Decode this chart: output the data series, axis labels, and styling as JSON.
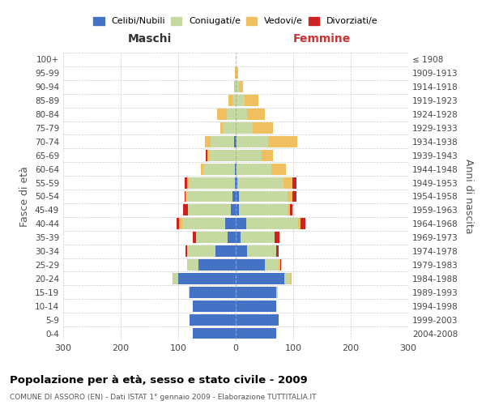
{
  "age_groups": [
    "0-4",
    "5-9",
    "10-14",
    "15-19",
    "20-24",
    "25-29",
    "30-34",
    "35-39",
    "40-44",
    "45-49",
    "50-54",
    "55-59",
    "60-64",
    "65-69",
    "70-74",
    "75-79",
    "80-84",
    "85-89",
    "90-94",
    "95-99",
    "100+"
  ],
  "birth_years": [
    "2004-2008",
    "1999-2003",
    "1994-1998",
    "1989-1993",
    "1984-1988",
    "1979-1983",
    "1974-1978",
    "1969-1973",
    "1964-1968",
    "1959-1963",
    "1954-1958",
    "1949-1953",
    "1944-1948",
    "1939-1943",
    "1934-1938",
    "1929-1933",
    "1924-1928",
    "1919-1923",
    "1914-1918",
    "1909-1913",
    "≤ 1908"
  ],
  "male_celibe": [
    75,
    80,
    75,
    80,
    100,
    65,
    35,
    14,
    18,
    8,
    5,
    2,
    2,
    0,
    3,
    0,
    0,
    0,
    0,
    0,
    0
  ],
  "male_coniugato": [
    0,
    0,
    0,
    2,
    8,
    20,
    50,
    55,
    75,
    75,
    80,
    80,
    55,
    45,
    40,
    22,
    15,
    5,
    1,
    0,
    0
  ],
  "male_vedovo": [
    0,
    0,
    0,
    0,
    2,
    0,
    0,
    0,
    5,
    0,
    2,
    2,
    3,
    5,
    10,
    5,
    18,
    8,
    2,
    1,
    0
  ],
  "male_divorziato": [
    0,
    0,
    0,
    0,
    0,
    0,
    2,
    5,
    5,
    8,
    2,
    5,
    0,
    2,
    0,
    0,
    0,
    0,
    0,
    0,
    0
  ],
  "female_nubile": [
    70,
    75,
    70,
    70,
    85,
    50,
    20,
    8,
    18,
    5,
    5,
    3,
    2,
    0,
    2,
    0,
    0,
    0,
    0,
    0,
    0
  ],
  "female_coniugata": [
    0,
    0,
    0,
    3,
    10,
    25,
    50,
    60,
    90,
    85,
    85,
    80,
    60,
    45,
    55,
    30,
    20,
    15,
    5,
    2,
    0
  ],
  "female_vedova": [
    0,
    0,
    0,
    0,
    2,
    2,
    0,
    0,
    5,
    5,
    8,
    15,
    25,
    20,
    50,
    35,
    30,
    25,
    8,
    2,
    0
  ],
  "female_divorziata": [
    0,
    0,
    0,
    0,
    0,
    2,
    5,
    8,
    8,
    3,
    8,
    8,
    0,
    0,
    0,
    0,
    0,
    0,
    0,
    0,
    0
  ],
  "color_celibe": "#4472c4",
  "color_coniugato": "#c5d9a0",
  "color_vedovo": "#f0c060",
  "color_divorziato": "#cc2222",
  "xlim": 300,
  "xticks": [
    -300,
    -200,
    -100,
    0,
    100,
    200,
    300
  ],
  "title": "Popolazione per à età, sesso e stato civile - 2009",
  "subtitle": "COMUNE DI ASSORO (EN) - Dati ISTAT 1° gennaio 2009 - Elaborazione TUTTITALIA.IT",
  "label_maschi": "Maschi",
  "label_femmine": "Femmine",
  "ylabel_left": "Fasce di età",
  "ylabel_right": "Anni di nascita",
  "legend_labels": [
    "Celibi/Nubili",
    "Coniugati/e",
    "Vedovi/e",
    "Divorziati/e"
  ]
}
